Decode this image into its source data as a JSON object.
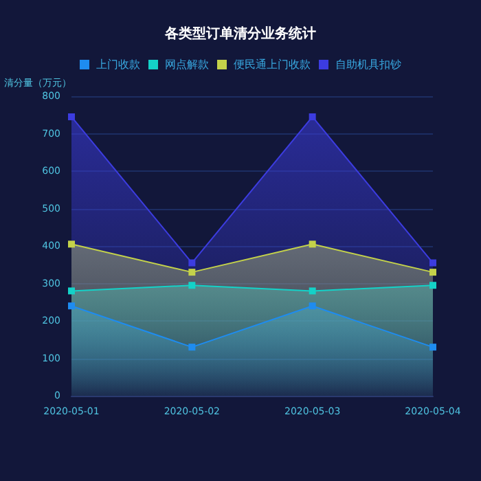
{
  "chart_data": {
    "type": "area",
    "title": "各类型订单清分业务统计",
    "ylabel": "清分量（万元）",
    "categories": [
      "2020-05-01",
      "2020-05-02",
      "2020-05-03",
      "2020-05-04"
    ],
    "series": [
      {
        "name": "上门收款",
        "color": "#1e8cf0",
        "values": [
          240,
          130,
          240,
          130
        ]
      },
      {
        "name": "网点解款",
        "color": "#14d2c8",
        "values": [
          280,
          295,
          280,
          295
        ]
      },
      {
        "name": "便民通上门收款",
        "color": "#c4d24a",
        "values": [
          405,
          330,
          405,
          330
        ]
      },
      {
        "name": "自助机具扣钞",
        "color": "#3c3ce0",
        "values": [
          745,
          355,
          745,
          355
        ]
      }
    ],
    "ylim": [
      0,
      800
    ],
    "yticks": [
      0,
      100,
      200,
      300,
      400,
      500,
      600,
      700,
      800
    ],
    "grid": "y",
    "legend": "top",
    "marker": "square"
  }
}
